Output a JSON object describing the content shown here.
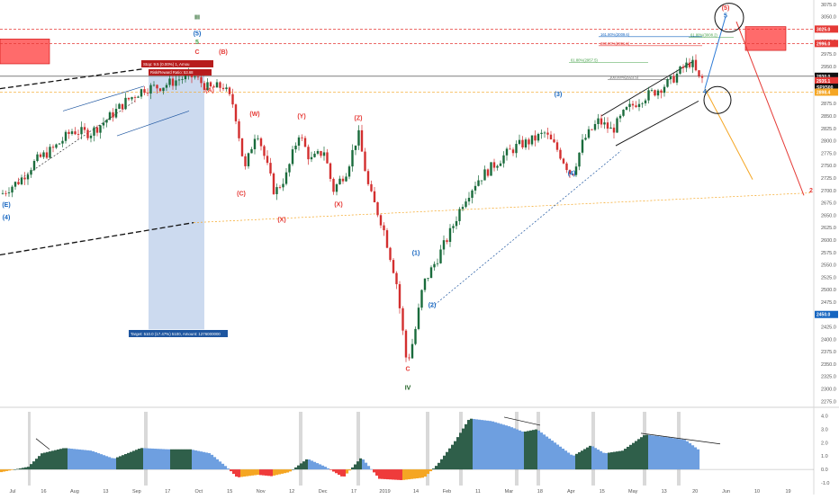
{
  "chart_data": {
    "type": "candlestick",
    "price_axis": {
      "ticks": [
        "3075.0",
        "3050.0",
        "3025.0",
        "3000.0",
        "2975.0",
        "2950.0",
        "2925.0",
        "2900.0",
        "2875.0",
        "2850.0",
        "2825.0",
        "2800.0",
        "2775.0",
        "2750.0",
        "2725.0",
        "2700.0",
        "2675.0",
        "2650.0",
        "2625.0",
        "2600.0",
        "2575.0",
        "2550.0",
        "2525.0",
        "2500.0",
        "2475.0",
        "2450.0",
        "2425.0",
        "2400.0",
        "2375.0",
        "2350.0",
        "2325.0",
        "2300.0",
        "2275.0"
      ],
      "range": [
        2272,
        3080
      ],
      "badges": [
        {
          "text": "3025.0",
          "color": "#e53935",
          "price": 3025
        },
        {
          "text": "2996.0",
          "color": "#e53935",
          "price": 2996
        },
        {
          "text": "2930.0",
          "color": "#111111",
          "price": 2930
        },
        {
          "text": "2935.1",
          "color": "#e53935",
          "price": 2921
        },
        {
          "text": "SPX500",
          "color": "#111111",
          "price": 2908
        },
        {
          "text": "2898.4",
          "color": "#f5a623",
          "price": 2898
        },
        {
          "text": "2450.0",
          "color": "#1565c0",
          "price": 2450
        }
      ]
    },
    "time_axis": [
      "Jul",
      "16",
      "Aug",
      "13",
      "Sep",
      "17",
      "Oct",
      "15",
      "Nov",
      "12",
      "Dec",
      "17",
      "2019",
      "14",
      "Feb",
      "11",
      "Mar",
      "18",
      "Apr",
      "15",
      "May",
      "13",
      "20",
      "Jun",
      "10",
      "19"
    ],
    "candles": [],
    "levels": [
      {
        "label": "161.80%(3009.6)",
        "price": 3009.6,
        "color": "#1565c0"
      },
      {
        "label": "200.00%(2991.6)",
        "price": 2991.6,
        "color": "#e53935"
      },
      {
        "label": "61.80%(2957.5)",
        "price": 2957.5,
        "color": "#43a047"
      },
      {
        "label": "100.00%(2923.5)",
        "price": 2923.5,
        "color": "#555555"
      },
      {
        "label": "61.80%(3008.2)",
        "price": 3008.2,
        "color": "#43a047"
      }
    ],
    "annotations": {
      "trade_box": {
        "stop_text": "Stop: 9.5 (0.00%) 1, Amou",
        "target_text": "Target: 510.0 (17.47%) 5100, Amount: 1276000000",
        "ratio_text": "Risk/Reward Ratio: 53.68"
      },
      "wave_labels": [
        {
          "t": "III",
          "price": 3045,
          "color": "#1b5e20"
        },
        {
          "t": "(5)",
          "price": 3012,
          "color": "#1565c0"
        },
        {
          "t": "5",
          "price": 2995,
          "color": "#43a047"
        },
        {
          "t": "C",
          "price": 2975,
          "color": "#e53935"
        },
        {
          "t": "(B)",
          "price": 2975,
          "color": "#e53935"
        },
        {
          "t": "(A)",
          "price": 2898,
          "color": "#e53935"
        },
        {
          "t": "(W)",
          "price": 2850,
          "color": "#e53935"
        },
        {
          "t": "(Y)",
          "price": 2845,
          "color": "#e53935"
        },
        {
          "t": "(Z)",
          "price": 2842,
          "color": "#e53935"
        },
        {
          "t": "(C)",
          "price": 2690,
          "color": "#e53935"
        },
        {
          "t": "(X)",
          "price": 2637,
          "color": "#e53935"
        },
        {
          "t": "(X)",
          "price": 2668,
          "color": "#e53935"
        },
        {
          "t": "(E)",
          "price": 2667,
          "color": "#1565c0"
        },
        {
          "t": "(4)",
          "price": 2642,
          "color": "#1565c0"
        },
        {
          "t": "C",
          "price": 2336,
          "color": "#e53935"
        },
        {
          "t": "IV",
          "price": 2298,
          "color": "#1b5e20"
        },
        {
          "t": "(1)",
          "price": 2570,
          "color": "#1565c0"
        },
        {
          "t": "(2)",
          "price": 2465,
          "color": "#1565c0"
        },
        {
          "t": "(3)",
          "price": 2890,
          "color": "#1565c0"
        },
        {
          "t": "(4)",
          "price": 2730,
          "color": "#1565c0"
        },
        {
          "t": "5",
          "price": 3048,
          "color": "#1565c0"
        },
        {
          "t": "(5)",
          "price": 3064,
          "color": "#e53935"
        },
        {
          "t": "4",
          "price": 2895,
          "color": "#1565c0"
        },
        {
          "t": "2",
          "price": 2696,
          "color": "#e53935"
        }
      ]
    },
    "indicator": {
      "axis_ticks": [
        "4.0",
        "3.0",
        "2.0",
        "1.0",
        "0.0",
        "-1.0"
      ],
      "range": [
        -1.2,
        4.3
      ]
    }
  }
}
